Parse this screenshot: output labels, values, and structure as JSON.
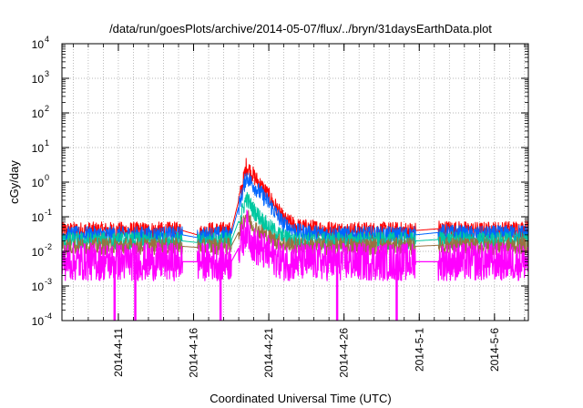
{
  "chart_data": {
    "type": "line",
    "title": "/data/run/goesPlots/archive/2014-05-07/flux/../bryn/31daysEarthData.plot",
    "xlabel": "Coordinated Universal Time (UTC)",
    "ylabel": "cGy/day",
    "yscale": "log",
    "ylim": [
      0.0001,
      10000
    ],
    "xlim": [
      "2014-04-07 06:00",
      "2014-05-08 06:00"
    ],
    "grid": true,
    "legend": "none",
    "x_ticks": [
      "2014-4-11",
      "2014-4-16",
      "2014-4-21",
      "2014-4-26",
      "2014-5-1",
      "2014-5-6"
    ],
    "y_ticks": [
      {
        "base": "10",
        "exp": "-4"
      },
      {
        "base": "10",
        "exp": "-3"
      },
      {
        "base": "10",
        "exp": "-2"
      },
      {
        "base": "10",
        "exp": "-1"
      },
      {
        "base": "10",
        "exp": "0"
      },
      {
        "base": "10",
        "exp": "1"
      },
      {
        "base": "10",
        "exp": "2"
      },
      {
        "base": "10",
        "exp": "3"
      },
      {
        "base": "10",
        "exp": "4"
      }
    ],
    "series": [
      {
        "color": "#ff0000",
        "x": [
          "2014-04-07 06:00",
          "2014-04-12",
          "2014-04-15 06:00",
          "2014-04-16 06:00",
          "2014-04-17",
          "2014-04-18 12:00",
          "2014-04-19 06:00",
          "2014-04-19 12:00",
          "2014-04-20",
          "2014-04-21",
          "2014-04-22",
          "2014-04-23",
          "2014-04-26",
          "2014-04-30 18:00",
          "2014-05-02 06:00",
          "2014-05-05",
          "2014-05-08 06:00"
        ],
        "y": [
          0.04,
          0.04,
          0.04,
          0.03,
          0.04,
          0.04,
          0.8,
          3.0,
          1.5,
          0.4,
          0.08,
          0.05,
          0.04,
          0.04,
          0.045,
          0.04,
          0.045
        ]
      },
      {
        "color": "#0066ff",
        "x": [
          "2014-04-07 06:00",
          "2014-04-12",
          "2014-04-15 06:00",
          "2014-04-16 06:00",
          "2014-04-17",
          "2014-04-18 12:00",
          "2014-04-19 06:00",
          "2014-04-19 12:00",
          "2014-04-20",
          "2014-04-21",
          "2014-04-22",
          "2014-04-23",
          "2014-04-26",
          "2014-04-30 18:00",
          "2014-05-02 06:00",
          "2014-05-05",
          "2014-05-08 06:00"
        ],
        "y": [
          0.03,
          0.03,
          0.03,
          0.025,
          0.03,
          0.03,
          0.5,
          1.5,
          0.8,
          0.25,
          0.06,
          0.035,
          0.03,
          0.03,
          0.035,
          0.03,
          0.035
        ]
      },
      {
        "color": "#00c8a0",
        "x": [
          "2014-04-07 06:00",
          "2014-04-12",
          "2014-04-15 06:00",
          "2014-04-16 06:00",
          "2014-04-17",
          "2014-04-18 12:00",
          "2014-04-19 06:00",
          "2014-04-19 12:00",
          "2014-04-20",
          "2014-04-21",
          "2014-04-22",
          "2014-04-23",
          "2014-04-26",
          "2014-04-30 18:00",
          "2014-05-02 06:00",
          "2014-05-05",
          "2014-05-08 06:00"
        ],
        "y": [
          0.02,
          0.02,
          0.02,
          0.018,
          0.02,
          0.02,
          0.15,
          0.35,
          0.15,
          0.05,
          0.025,
          0.02,
          0.02,
          0.02,
          0.022,
          0.02,
          0.022
        ]
      },
      {
        "color": "#9a7040",
        "x": [
          "2014-04-07 06:00",
          "2014-04-12",
          "2014-04-15 06:00",
          "2014-04-16 06:00",
          "2014-04-17",
          "2014-04-18 12:00",
          "2014-04-19 06:00",
          "2014-04-19 12:00",
          "2014-04-20",
          "2014-04-21",
          "2014-04-22",
          "2014-04-23",
          "2014-04-26",
          "2014-04-30 18:00",
          "2014-05-02 06:00",
          "2014-05-05",
          "2014-05-08 06:00"
        ],
        "y": [
          0.014,
          0.014,
          0.014,
          0.013,
          0.014,
          0.014,
          0.06,
          0.12,
          0.05,
          0.025,
          0.016,
          0.014,
          0.014,
          0.014,
          0.015,
          0.014,
          0.015
        ]
      },
      {
        "color": "#ff00ff",
        "x": [
          "2014-04-07 06:00",
          "2014-04-12",
          "2014-04-15 06:00",
          "2014-04-16 06:00",
          "2014-04-17",
          "2014-04-18 12:00",
          "2014-04-19 06:00",
          "2014-04-19 12:00",
          "2014-04-20",
          "2014-04-21",
          "2014-04-22",
          "2014-04-23",
          "2014-04-26",
          "2014-04-30 18:00",
          "2014-05-02 06:00",
          "2014-05-05",
          "2014-05-08 06:00"
        ],
        "y": [
          0.005,
          0.005,
          0.005,
          0.005,
          0.005,
          0.005,
          0.02,
          0.05,
          0.015,
          0.008,
          0.005,
          0.005,
          0.005,
          0.005,
          0.005,
          0.005,
          0.005
        ]
      }
    ],
    "dropouts": [
      "2014-04-10 18:00",
      "2014-04-12 03:00",
      "2014-04-17 19:00",
      "2014-04-25 13:00",
      "2014-04-29 12:00"
    ],
    "data_gaps": [
      {
        "from": "2014-04-15 06:00",
        "to": "2014-04-16 06:00"
      },
      {
        "from": "2014-04-18 12:00",
        "to": "2014-04-19 00:00"
      },
      {
        "from": "2014-04-30 18:00",
        "to": "2014-05-02 06:00"
      }
    ]
  },
  "colors": {
    "background": "#ffffff",
    "axis": "#000000",
    "grid": "#a0a0a0"
  }
}
